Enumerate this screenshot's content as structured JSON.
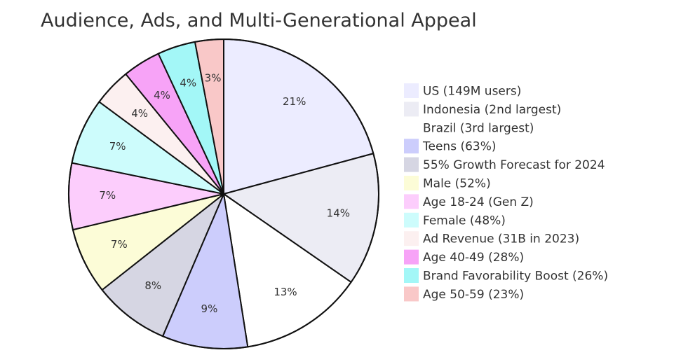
{
  "chart_data": {
    "type": "pie",
    "title": "Audience, Ads, and Multi-Generational Appeal",
    "categories": [
      "US (149M users)",
      "Indonesia (2nd largest)",
      "Brazil (3rd largest)",
      "Teens (63%)",
      "55% Growth Forecast for 2024",
      "Male (52%)",
      "Age 18-24 (Gen Z)",
      "Female (48%)",
      "Ad Revenue (31B in 2023)",
      "Age 40-49 (28%)",
      "Brand Favorability Boost (26%)",
      "Age 50-59 (23%)"
    ],
    "values": [
      21,
      14,
      13,
      9,
      8,
      7,
      7,
      7,
      4,
      4,
      4,
      3
    ],
    "labels": [
      "21%",
      "14%",
      "13%",
      "9%",
      "8%",
      "7%",
      "7%",
      "7%",
      "4%",
      "4%",
      "4%",
      "3%"
    ],
    "colors": [
      "#ececff",
      "#ececf4",
      "#ffffff",
      "#cccdfc",
      "#d6d6e3",
      "#fcfcd7",
      "#fccdfc",
      "#cdfcfc",
      "#fcf0f0",
      "#f7a3f7",
      "#a3f7f7",
      "#f9c8c8"
    ],
    "legend_position": "right"
  }
}
